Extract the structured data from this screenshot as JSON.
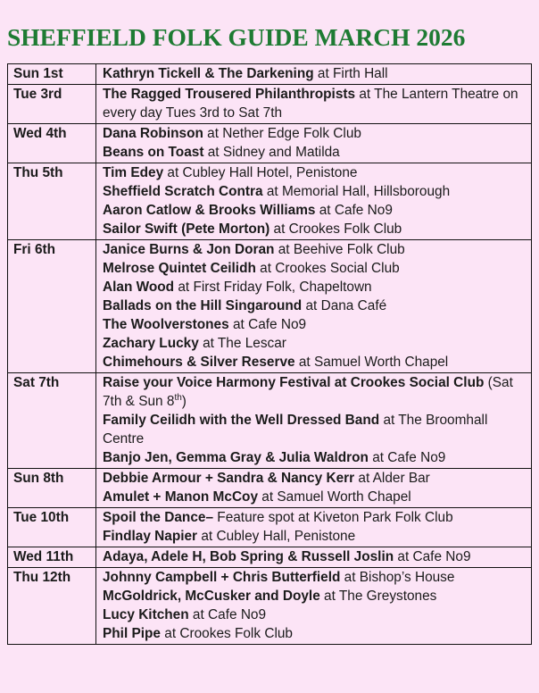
{
  "title": "SHEFFIELD FOLK GUIDE MARCH 2026",
  "colors": {
    "page_background": "#fce4f6",
    "title_green": "#1e7b33",
    "text": "#1b1b1b",
    "table_border": "#111111"
  },
  "table": {
    "columns": [
      "date",
      "events"
    ],
    "rows": [
      {
        "date": "Sun 1st",
        "events": [
          [
            {
              "t": "Kathryn Tickell & The Darkening",
              "b": true
            },
            {
              "t": " at Firth Hall",
              "b": false
            }
          ]
        ]
      },
      {
        "date": "Tue 3rd",
        "events": [
          [
            {
              "t": "The Ragged Trousered Philanthropists",
              "b": true
            },
            {
              "t": " at The Lantern Theatre on every day Tues 3rd to Sat 7th",
              "b": false
            }
          ]
        ]
      },
      {
        "date": "Wed 4th",
        "events": [
          [
            {
              "t": "Dana Robinson",
              "b": true
            },
            {
              "t": " at Nether Edge Folk Club",
              "b": false
            }
          ],
          [
            {
              "t": "Beans on Toast",
              "b": true
            },
            {
              "t": " at Sidney and Matilda",
              "b": false
            }
          ]
        ]
      },
      {
        "date": "Thu 5th",
        "events": [
          [
            {
              "t": "Tim Edey",
              "b": true
            },
            {
              "t": " at Cubley Hall Hotel, Penistone",
              "b": false
            }
          ],
          [
            {
              "t": "Sheffield Scratch Contra",
              "b": true
            },
            {
              "t": " at Memorial Hall, Hillsborough",
              "b": false
            }
          ],
          [
            {
              "t": "Aaron Catlow & Brooks Williams",
              "b": true
            },
            {
              "t": " at Cafe No9",
              "b": false
            }
          ],
          [
            {
              "t": "Sailor Swift (Pete Morton)",
              "b": true
            },
            {
              "t": " at Crookes Folk Club",
              "b": false
            }
          ]
        ]
      },
      {
        "date": "Fri 6th",
        "events": [
          [
            {
              "t": "Janice Burns & Jon Doran",
              "b": true
            },
            {
              "t": " at Beehive Folk Club",
              "b": false
            }
          ],
          [
            {
              "t": "Melrose Quintet Ceilidh",
              "b": true
            },
            {
              "t": " at Crookes Social Club",
              "b": false
            }
          ],
          [
            {
              "t": "Alan Wood",
              "b": true
            },
            {
              "t": " at First Friday Folk, Chapeltown",
              "b": false
            }
          ],
          [
            {
              "t": "Ballads on the Hill Singaround",
              "b": true
            },
            {
              "t": " at Dana Café",
              "b": false
            }
          ],
          [
            {
              "t": "The Woolverstones",
              "b": true
            },
            {
              "t": " at Cafe No9",
              "b": false
            }
          ],
          [
            {
              "t": "Zachary Lucky",
              "b": true
            },
            {
              "t": " at The Lescar",
              "b": false
            }
          ],
          [
            {
              "t": "Chimehours & Silver Reserve",
              "b": true
            },
            {
              "t": " at Samuel Worth Chapel",
              "b": false
            }
          ]
        ]
      },
      {
        "date": "Sat 7th",
        "events": [
          [
            {
              "t": "Raise your Voice Harmony Festival at Crookes Social Club",
              "b": true
            },
            {
              "t": " (Sat 7th & Sun 8",
              "b": false
            },
            {
              "t": "th",
              "b": false,
              "sup": true
            },
            {
              "t": ")",
              "b": false
            }
          ],
          [
            {
              "t": "Family Ceilidh with the Well Dressed Band",
              "b": true
            },
            {
              "t": " at The Broomhall Centre",
              "b": false
            }
          ],
          [
            {
              "t": "Banjo Jen, Gemma Gray & Julia Waldron",
              "b": true
            },
            {
              "t": " at Cafe No9",
              "b": false
            }
          ]
        ]
      },
      {
        "date": "Sun 8th",
        "events": [
          [
            {
              "t": "Debbie Armour + Sandra & Nancy Kerr",
              "b": true
            },
            {
              "t": " at Alder Bar",
              "b": false
            }
          ],
          [
            {
              "t": "Amulet + Manon McCoy",
              "b": true
            },
            {
              "t": " at Samuel Worth Chapel",
              "b": false
            }
          ]
        ]
      },
      {
        "date": "Tue 10th",
        "events": [
          [
            {
              "t": "Spoil the Dance–",
              "b": true
            },
            {
              "t": " Feature spot at Kiveton Park Folk Club",
              "b": false
            }
          ],
          [
            {
              "t": "Findlay Napier",
              "b": true
            },
            {
              "t": " at Cubley Hall, Penistone",
              "b": false
            }
          ]
        ]
      },
      {
        "date": "Wed 11th",
        "events": [
          [
            {
              "t": "Adaya, Adele H, Bob Spring & Russell Joslin",
              "b": true
            },
            {
              "t": " at Cafe No9",
              "b": false
            }
          ]
        ]
      },
      {
        "date": "Thu 12th",
        "events": [
          [
            {
              "t": "Johnny Campbell + Chris Butterfield",
              "b": true
            },
            {
              "t": " at Bishop’s House",
              "b": false
            }
          ],
          [
            {
              "t": "McGoldrick, McCusker and Doyle",
              "b": true
            },
            {
              "t": " at The Greystones",
              "b": false
            }
          ],
          [
            {
              "t": "Lucy Kitchen",
              "b": true
            },
            {
              "t": " at Cafe No9",
              "b": false
            }
          ],
          [
            {
              "t": "Phil Pipe",
              "b": true
            },
            {
              "t": " at Crookes Folk Club",
              "b": false
            }
          ]
        ]
      }
    ]
  }
}
